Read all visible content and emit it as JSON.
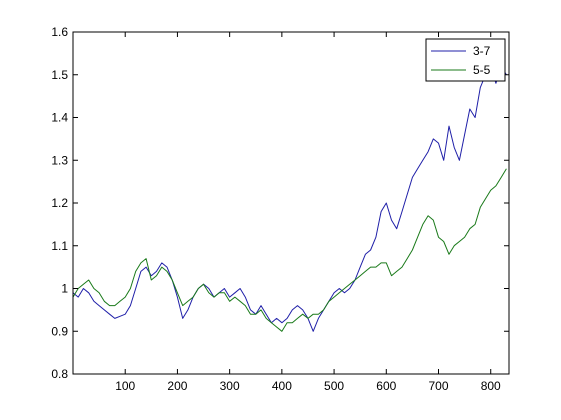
{
  "chart_data": {
    "type": "line",
    "title": "",
    "xlabel": "",
    "ylabel": "",
    "xlim": [
      0,
      835
    ],
    "ylim": [
      0.8,
      1.6
    ],
    "x_ticks": [
      100,
      200,
      300,
      400,
      500,
      600,
      700,
      800
    ],
    "y_ticks": [
      0.8,
      0.9,
      1,
      1.1,
      1.2,
      1.3,
      1.4,
      1.5,
      1.6
    ],
    "grid": false,
    "legend_position": "top-right",
    "series": [
      {
        "name": "3-7",
        "color": "#1f1fa8",
        "points": [
          [
            0,
            0.99
          ],
          [
            10,
            0.98
          ],
          [
            20,
            1.0
          ],
          [
            30,
            0.99
          ],
          [
            40,
            0.97
          ],
          [
            50,
            0.96
          ],
          [
            60,
            0.95
          ],
          [
            70,
            0.94
          ],
          [
            80,
            0.93
          ],
          [
            90,
            0.935
          ],
          [
            100,
            0.94
          ],
          [
            110,
            0.96
          ],
          [
            120,
            1.0
          ],
          [
            130,
            1.04
          ],
          [
            140,
            1.05
          ],
          [
            150,
            1.03
          ],
          [
            160,
            1.04
          ],
          [
            170,
            1.06
          ],
          [
            180,
            1.05
          ],
          [
            190,
            1.02
          ],
          [
            200,
            0.98
          ],
          [
            210,
            0.93
          ],
          [
            220,
            0.95
          ],
          [
            230,
            0.98
          ],
          [
            240,
            1.0
          ],
          [
            250,
            1.01
          ],
          [
            260,
            1.0
          ],
          [
            270,
            0.98
          ],
          [
            280,
            0.99
          ],
          [
            290,
            1.0
          ],
          [
            300,
            0.98
          ],
          [
            310,
            0.99
          ],
          [
            320,
            1.0
          ],
          [
            330,
            0.98
          ],
          [
            340,
            0.95
          ],
          [
            350,
            0.94
          ],
          [
            360,
            0.96
          ],
          [
            370,
            0.94
          ],
          [
            380,
            0.92
          ],
          [
            390,
            0.93
          ],
          [
            400,
            0.92
          ],
          [
            410,
            0.93
          ],
          [
            420,
            0.95
          ],
          [
            430,
            0.96
          ],
          [
            440,
            0.95
          ],
          [
            450,
            0.93
          ],
          [
            460,
            0.9
          ],
          [
            470,
            0.93
          ],
          [
            480,
            0.95
          ],
          [
            490,
            0.97
          ],
          [
            500,
            0.99
          ],
          [
            510,
            1.0
          ],
          [
            520,
            0.99
          ],
          [
            530,
            1.0
          ],
          [
            540,
            1.02
          ],
          [
            550,
            1.05
          ],
          [
            560,
            1.08
          ],
          [
            570,
            1.09
          ],
          [
            580,
            1.12
          ],
          [
            590,
            1.18
          ],
          [
            600,
            1.2
          ],
          [
            610,
            1.16
          ],
          [
            620,
            1.14
          ],
          [
            630,
            1.18
          ],
          [
            640,
            1.22
          ],
          [
            650,
            1.26
          ],
          [
            660,
            1.28
          ],
          [
            670,
            1.3
          ],
          [
            680,
            1.32
          ],
          [
            690,
            1.35
          ],
          [
            700,
            1.34
          ],
          [
            710,
            1.3
          ],
          [
            720,
            1.38
          ],
          [
            730,
            1.33
          ],
          [
            740,
            1.3
          ],
          [
            750,
            1.36
          ],
          [
            760,
            1.42
          ],
          [
            770,
            1.4
          ],
          [
            780,
            1.47
          ],
          [
            790,
            1.5
          ],
          [
            800,
            1.52
          ],
          [
            810,
            1.48
          ],
          [
            820,
            1.52
          ],
          [
            830,
            1.5
          ]
        ]
      },
      {
        "name": "5-5",
        "color": "#1a7a1a",
        "points": [
          [
            0,
            0.98
          ],
          [
            10,
            1.0
          ],
          [
            20,
            1.01
          ],
          [
            30,
            1.02
          ],
          [
            40,
            1.0
          ],
          [
            50,
            0.99
          ],
          [
            60,
            0.97
          ],
          [
            70,
            0.96
          ],
          [
            80,
            0.96
          ],
          [
            90,
            0.97
          ],
          [
            100,
            0.98
          ],
          [
            110,
            1.0
          ],
          [
            120,
            1.04
          ],
          [
            130,
            1.06
          ],
          [
            140,
            1.07
          ],
          [
            150,
            1.02
          ],
          [
            160,
            1.03
          ],
          [
            170,
            1.05
          ],
          [
            180,
            1.04
          ],
          [
            190,
            1.02
          ],
          [
            200,
            0.99
          ],
          [
            210,
            0.96
          ],
          [
            220,
            0.97
          ],
          [
            230,
            0.98
          ],
          [
            240,
            1.0
          ],
          [
            250,
            1.01
          ],
          [
            260,
            0.99
          ],
          [
            270,
            0.98
          ],
          [
            280,
            0.99
          ],
          [
            290,
            0.99
          ],
          [
            300,
            0.97
          ],
          [
            310,
            0.98
          ],
          [
            320,
            0.97
          ],
          [
            330,
            0.96
          ],
          [
            340,
            0.94
          ],
          [
            350,
            0.94
          ],
          [
            360,
            0.95
          ],
          [
            370,
            0.93
          ],
          [
            380,
            0.92
          ],
          [
            390,
            0.91
          ],
          [
            400,
            0.9
          ],
          [
            410,
            0.92
          ],
          [
            420,
            0.92
          ],
          [
            430,
            0.93
          ],
          [
            440,
            0.94
          ],
          [
            450,
            0.93
          ],
          [
            460,
            0.94
          ],
          [
            470,
            0.94
          ],
          [
            480,
            0.95
          ],
          [
            490,
            0.97
          ],
          [
            500,
            0.98
          ],
          [
            510,
            0.99
          ],
          [
            520,
            1.0
          ],
          [
            530,
            1.01
          ],
          [
            540,
            1.02
          ],
          [
            550,
            1.03
          ],
          [
            560,
            1.04
          ],
          [
            570,
            1.05
          ],
          [
            580,
            1.05
          ],
          [
            590,
            1.06
          ],
          [
            600,
            1.06
          ],
          [
            610,
            1.03
          ],
          [
            620,
            1.04
          ],
          [
            630,
            1.05
          ],
          [
            640,
            1.07
          ],
          [
            650,
            1.09
          ],
          [
            660,
            1.12
          ],
          [
            670,
            1.15
          ],
          [
            680,
            1.17
          ],
          [
            690,
            1.16
          ],
          [
            700,
            1.12
          ],
          [
            710,
            1.11
          ],
          [
            720,
            1.08
          ],
          [
            730,
            1.1
          ],
          [
            740,
            1.11
          ],
          [
            750,
            1.12
          ],
          [
            760,
            1.14
          ],
          [
            770,
            1.15
          ],
          [
            780,
            1.19
          ],
          [
            790,
            1.21
          ],
          [
            800,
            1.23
          ],
          [
            810,
            1.24
          ],
          [
            820,
            1.26
          ],
          [
            830,
            1.28
          ]
        ]
      }
    ]
  }
}
